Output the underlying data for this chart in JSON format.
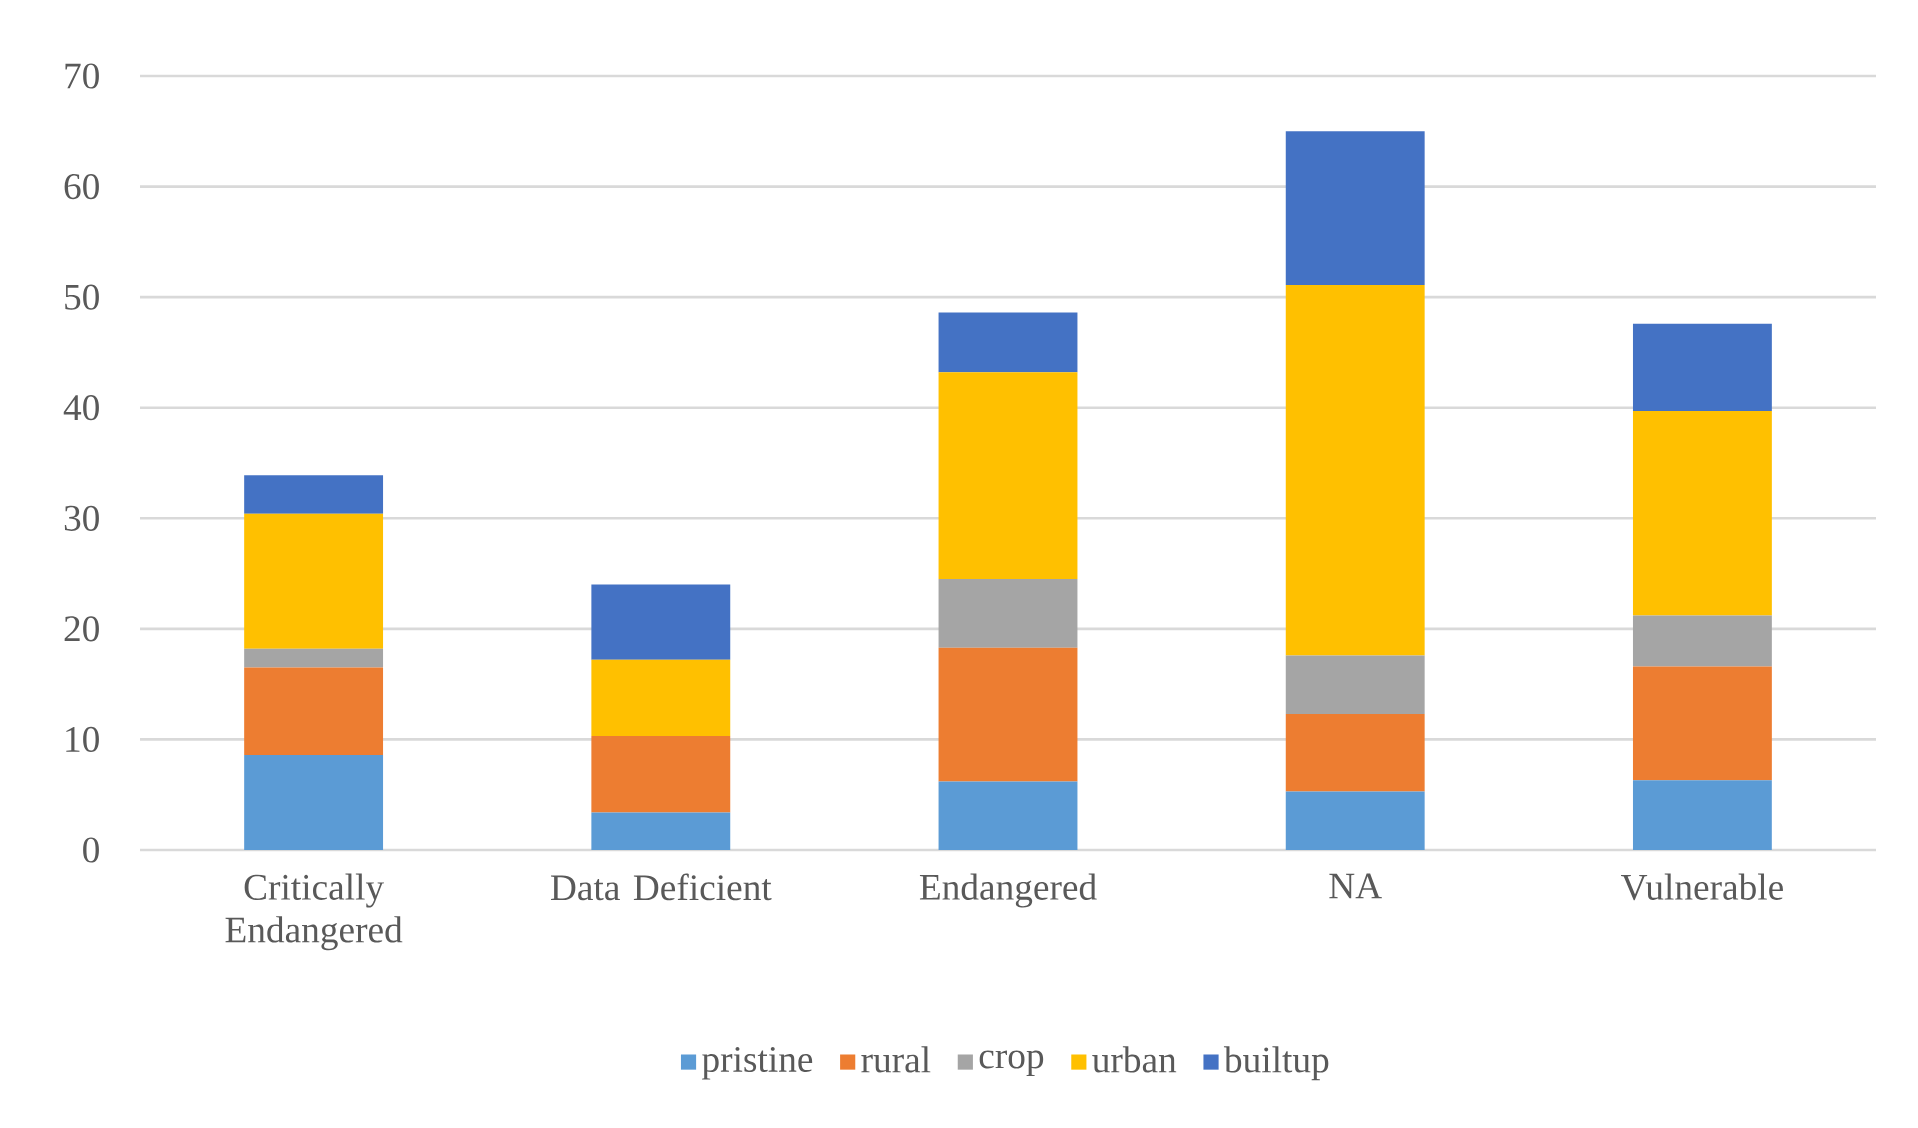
{
  "chart_data": {
    "type": "bar",
    "stacked": true,
    "categories": [
      "Critically Endangered",
      "Data Deficient",
      "Endangered",
      "NA",
      "Vulnerable"
    ],
    "series": [
      {
        "name": "pristine",
        "color": "#5b9bd5",
        "values": [
          8.6,
          3.4,
          6.2,
          5.3,
          6.3
        ]
      },
      {
        "name": "rural",
        "color": "#ed7d31",
        "values": [
          7.9,
          6.9,
          12.1,
          7.0,
          10.3
        ]
      },
      {
        "name": "crop",
        "color": "#a5a5a5",
        "values": [
          1.7,
          0,
          6.2,
          5.3,
          4.6
        ]
      },
      {
        "name": "urban",
        "color": "#ffc000",
        "values": [
          12.2,
          6.9,
          18.7,
          33.5,
          18.5
        ]
      },
      {
        "name": "builtup",
        "color": "#4472c4",
        "values": [
          3.5,
          6.8,
          5.4,
          13.9,
          7.9
        ]
      }
    ],
    "ylim": [
      0,
      70
    ],
    "yticks": [
      0,
      10,
      20,
      30,
      40,
      50,
      60,
      70
    ],
    "grid": "y",
    "legend": "bottom"
  }
}
